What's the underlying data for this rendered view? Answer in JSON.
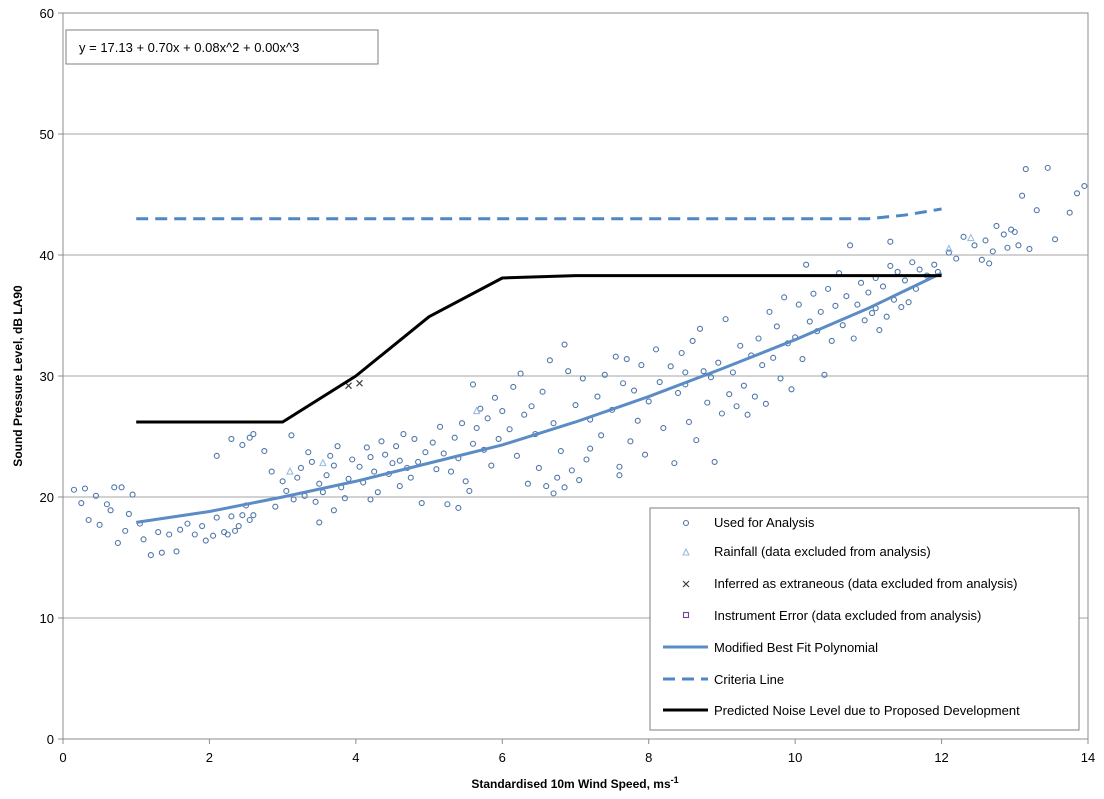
{
  "chart_data": {
    "type": "scatter",
    "equation": "y = 17.13 + 0.70x + 0.08x^2 + 0.00x^3",
    "xlabel": "Standardised 10m Wind Speed, ms",
    "xlabel_sup": "-1",
    "ylabel": "Sound Pressure Level, dB LA90",
    "xlim": [
      0,
      14
    ],
    "ylim": [
      0,
      60
    ],
    "x_ticks": [
      0,
      2,
      4,
      6,
      8,
      10,
      12,
      14
    ],
    "y_ticks": [
      0,
      10,
      20,
      30,
      40,
      50,
      60
    ],
    "grid": "horizontal",
    "legend_position": "bottom-right",
    "colors": {
      "used": "#4f76a8",
      "rainfall": "#9bbde0",
      "extraneous": "#3a3a3a",
      "instrument": "#7b3f9e",
      "fit": "#5b8cc6",
      "criteria": "#4f86c6",
      "predicted": "#000000",
      "grid": "#a6a6a6"
    },
    "legend": [
      {
        "label": "Used for Analysis",
        "marker": "circle"
      },
      {
        "label": "Rainfall (data excluded from analysis)",
        "marker": "triangle"
      },
      {
        "label": "Inferred as extraneous (data excluded from analysis)",
        "marker": "cross"
      },
      {
        "label": "Instrument Error (data excluded from analysis)",
        "marker": "square"
      },
      {
        "label": "Modified Best Fit Polynomial",
        "marker": "line"
      },
      {
        "label": "Criteria Line",
        "marker": "dashed"
      },
      {
        "label": "Predicted Noise Level due to Proposed Development",
        "marker": "thick-line"
      }
    ],
    "series": {
      "best_fit": {
        "name": "Modified Best Fit Polynomial",
        "x": [
          1,
          2,
          3,
          4,
          5,
          6,
          7,
          8,
          9,
          10,
          11,
          12
        ],
        "y": [
          17.9,
          18.8,
          20.0,
          21.3,
          22.8,
          24.3,
          26.2,
          28.3,
          30.6,
          33.0,
          35.6,
          38.5
        ]
      },
      "criteria": {
        "name": "Criteria Line",
        "x": [
          1,
          2,
          3,
          4,
          5,
          6,
          7,
          8,
          9,
          10,
          11,
          11.5,
          12
        ],
        "y": [
          43,
          43,
          43,
          43,
          43,
          43,
          43,
          43,
          43,
          43,
          43,
          43.3,
          43.8
        ]
      },
      "predicted": {
        "name": "Predicted Noise Level due to Proposed Development",
        "x": [
          1,
          2,
          3,
          4,
          5,
          6,
          7,
          8,
          9,
          10,
          11,
          12
        ],
        "y": [
          26.2,
          26.2,
          26.2,
          30.0,
          34.9,
          38.1,
          38.3,
          38.3,
          38.3,
          38.3,
          38.3,
          38.3
        ]
      },
      "extraneous": {
        "name": "Inferred as extraneous (data excluded from analysis)",
        "points": [
          [
            3.9,
            29.2
          ],
          [
            4.05,
            29.4
          ]
        ]
      },
      "rainfall": {
        "name": "Rainfall (data excluded from analysis)",
        "points": [
          [
            3.1,
            22.1
          ],
          [
            3.55,
            22.8
          ],
          [
            5.65,
            27.1
          ],
          [
            12.1,
            40.5
          ],
          [
            12.4,
            41.4
          ]
        ]
      },
      "used": {
        "name": "Used for Analysis",
        "points": [
          [
            0.15,
            20.6
          ],
          [
            0.25,
            19.5
          ],
          [
            0.35,
            18.1
          ],
          [
            0.3,
            20.7
          ],
          [
            0.45,
            20.1
          ],
          [
            0.5,
            17.7
          ],
          [
            0.6,
            19.4
          ],
          [
            0.7,
            20.8
          ],
          [
            0.8,
            20.8
          ],
          [
            0.9,
            18.6
          ],
          [
            0.95,
            20.2
          ],
          [
            0.75,
            16.2
          ],
          [
            0.85,
            17.2
          ],
          [
            0.65,
            18.9
          ],
          [
            1.05,
            17.8
          ],
          [
            1.1,
            16.5
          ],
          [
            1.2,
            15.2
          ],
          [
            1.3,
            17.1
          ],
          [
            1.35,
            15.4
          ],
          [
            1.45,
            16.9
          ],
          [
            1.55,
            15.5
          ],
          [
            1.6,
            17.3
          ],
          [
            1.7,
            17.8
          ],
          [
            1.8,
            16.9
          ],
          [
            1.9,
            17.6
          ],
          [
            1.95,
            16.4
          ],
          [
            2.05,
            16.8
          ],
          [
            2.1,
            18.3
          ],
          [
            2.2,
            17.1
          ],
          [
            2.25,
            16.9
          ],
          [
            2.3,
            18.4
          ],
          [
            2.35,
            17.2
          ],
          [
            2.4,
            17.6
          ],
          [
            2.45,
            18.5
          ],
          [
            2.5,
            19.3
          ],
          [
            2.55,
            18.1
          ],
          [
            2.6,
            18.5
          ],
          [
            2.1,
            23.4
          ],
          [
            2.3,
            24.8
          ],
          [
            2.45,
            24.3
          ],
          [
            2.55,
            24.9
          ],
          [
            2.6,
            25.2
          ],
          [
            2.75,
            23.8
          ],
          [
            2.85,
            22.1
          ],
          [
            2.9,
            19.2
          ],
          [
            3.0,
            21.3
          ],
          [
            3.05,
            20.5
          ],
          [
            3.15,
            19.8
          ],
          [
            3.2,
            21.6
          ],
          [
            3.25,
            22.4
          ],
          [
            3.3,
            20.1
          ],
          [
            3.35,
            23.7
          ],
          [
            3.4,
            22.9
          ],
          [
            3.45,
            19.6
          ],
          [
            3.5,
            21.1
          ],
          [
            3.55,
            20.4
          ],
          [
            3.6,
            21.8
          ],
          [
            3.65,
            23.4
          ],
          [
            3.7,
            22.6
          ],
          [
            3.75,
            24.2
          ],
          [
            3.8,
            20.8
          ],
          [
            3.85,
            19.9
          ],
          [
            3.9,
            21.5
          ],
          [
            3.95,
            23.1
          ],
          [
            3.12,
            25.1
          ],
          [
            3.5,
            17.9
          ],
          [
            3.7,
            18.9
          ],
          [
            4.05,
            22.5
          ],
          [
            4.1,
            21.2
          ],
          [
            4.15,
            24.1
          ],
          [
            4.2,
            23.3
          ],
          [
            4.25,
            22.1
          ],
          [
            4.3,
            20.4
          ],
          [
            4.35,
            24.6
          ],
          [
            4.4,
            23.5
          ],
          [
            4.45,
            21.9
          ],
          [
            4.5,
            22.8
          ],
          [
            4.55,
            24.2
          ],
          [
            4.6,
            23.0
          ],
          [
            4.65,
            25.2
          ],
          [
            4.7,
            22.4
          ],
          [
            4.75,
            21.6
          ],
          [
            4.8,
            24.8
          ],
          [
            4.85,
            22.9
          ],
          [
            4.9,
            19.5
          ],
          [
            4.95,
            23.7
          ],
          [
            4.2,
            19.8
          ],
          [
            4.6,
            20.9
          ],
          [
            5.05,
            24.5
          ],
          [
            5.1,
            22.3
          ],
          [
            5.15,
            25.8
          ],
          [
            5.2,
            23.6
          ],
          [
            5.25,
            19.4
          ],
          [
            5.3,
            22.1
          ],
          [
            5.35,
            24.9
          ],
          [
            5.4,
            23.2
          ],
          [
            5.45,
            26.1
          ],
          [
            5.5,
            21.3
          ],
          [
            5.55,
            20.5
          ],
          [
            5.6,
            24.4
          ],
          [
            5.65,
            25.7
          ],
          [
            5.7,
            27.3
          ],
          [
            5.75,
            23.9
          ],
          [
            5.8,
            26.5
          ],
          [
            5.85,
            22.6
          ],
          [
            5.9,
            28.2
          ],
          [
            5.95,
            24.8
          ],
          [
            5.4,
            19.1
          ],
          [
            5.6,
            29.3
          ],
          [
            6.0,
            27.1
          ],
          [
            6.1,
            25.6
          ],
          [
            6.15,
            29.1
          ],
          [
            6.2,
            23.4
          ],
          [
            6.25,
            30.2
          ],
          [
            6.3,
            26.8
          ],
          [
            6.35,
            21.1
          ],
          [
            6.4,
            27.5
          ],
          [
            6.45,
            25.2
          ],
          [
            6.5,
            22.4
          ],
          [
            6.55,
            28.7
          ],
          [
            6.6,
            20.9
          ],
          [
            6.65,
            31.3
          ],
          [
            6.7,
            26.1
          ],
          [
            6.75,
            21.6
          ],
          [
            6.8,
            23.8
          ],
          [
            6.85,
            32.6
          ],
          [
            6.9,
            30.4
          ],
          [
            6.95,
            22.2
          ],
          [
            6.7,
            20.3
          ],
          [
            6.85,
            20.8
          ],
          [
            7.0,
            27.6
          ],
          [
            7.05,
            21.4
          ],
          [
            7.1,
            29.8
          ],
          [
            7.15,
            23.1
          ],
          [
            7.2,
            26.4
          ],
          [
            7.3,
            28.3
          ],
          [
            7.35,
            25.1
          ],
          [
            7.4,
            30.1
          ],
          [
            7.5,
            27.2
          ],
          [
            7.55,
            31.6
          ],
          [
            7.6,
            22.5
          ],
          [
            7.65,
            29.4
          ],
          [
            7.7,
            31.4
          ],
          [
            7.75,
            24.6
          ],
          [
            7.8,
            28.8
          ],
          [
            7.85,
            26.3
          ],
          [
            7.9,
            30.9
          ],
          [
            7.95,
            23.5
          ],
          [
            7.2,
            24.0
          ],
          [
            7.6,
            21.8
          ],
          [
            8.0,
            27.9
          ],
          [
            8.1,
            32.2
          ],
          [
            8.15,
            29.5
          ],
          [
            8.2,
            25.7
          ],
          [
            8.3,
            30.8
          ],
          [
            8.35,
            22.8
          ],
          [
            8.4,
            28.6
          ],
          [
            8.45,
            31.9
          ],
          [
            8.5,
            29.3
          ],
          [
            8.55,
            26.2
          ],
          [
            8.6,
            32.9
          ],
          [
            8.65,
            24.7
          ],
          [
            8.7,
            33.9
          ],
          [
            8.75,
            30.4
          ],
          [
            8.8,
            27.8
          ],
          [
            8.85,
            29.9
          ],
          [
            8.9,
            22.9
          ],
          [
            8.95,
            31.1
          ],
          [
            8.5,
            30.3
          ],
          [
            9.0,
            26.9
          ],
          [
            9.05,
            34.7
          ],
          [
            9.1,
            28.5
          ],
          [
            9.15,
            30.3
          ],
          [
            9.2,
            27.5
          ],
          [
            9.25,
            32.5
          ],
          [
            9.3,
            29.2
          ],
          [
            9.35,
            26.8
          ],
          [
            9.4,
            31.7
          ],
          [
            9.45,
            28.3
          ],
          [
            9.5,
            33.1
          ],
          [
            9.55,
            30.9
          ],
          [
            9.6,
            27.7
          ],
          [
            9.65,
            35.3
          ],
          [
            9.7,
            31.5
          ],
          [
            9.75,
            34.1
          ],
          [
            9.8,
            29.8
          ],
          [
            9.85,
            36.5
          ],
          [
            9.9,
            32.7
          ],
          [
            9.95,
            28.9
          ],
          [
            10.0,
            33.2
          ],
          [
            10.05,
            35.9
          ],
          [
            10.1,
            31.4
          ],
          [
            10.15,
            39.2
          ],
          [
            10.2,
            34.5
          ],
          [
            10.25,
            36.8
          ],
          [
            10.3,
            33.7
          ],
          [
            10.35,
            35.3
          ],
          [
            10.4,
            30.1
          ],
          [
            10.45,
            37.2
          ],
          [
            10.5,
            32.9
          ],
          [
            10.55,
            35.8
          ],
          [
            10.6,
            38.5
          ],
          [
            10.65,
            34.2
          ],
          [
            10.7,
            36.6
          ],
          [
            10.75,
            40.8
          ],
          [
            10.8,
            33.1
          ],
          [
            10.85,
            35.9
          ],
          [
            10.9,
            37.7
          ],
          [
            10.95,
            34.6
          ],
          [
            11.0,
            36.9
          ],
          [
            11.05,
            35.2
          ],
          [
            11.1,
            38.1
          ],
          [
            11.15,
            33.8
          ],
          [
            11.2,
            37.4
          ],
          [
            11.25,
            34.9
          ],
          [
            11.3,
            39.1
          ],
          [
            11.35,
            36.3
          ],
          [
            11.4,
            38.6
          ],
          [
            11.45,
            35.7
          ],
          [
            11.5,
            37.9
          ],
          [
            11.55,
            36.1
          ],
          [
            11.6,
            39.4
          ],
          [
            11.65,
            37.2
          ],
          [
            11.7,
            38.8
          ],
          [
            11.8,
            38.3
          ],
          [
            11.9,
            39.2
          ],
          [
            11.95,
            38.6
          ],
          [
            11.3,
            41.1
          ],
          [
            11.1,
            35.6
          ],
          [
            12.1,
            40.2
          ],
          [
            12.2,
            39.7
          ],
          [
            12.3,
            41.5
          ],
          [
            12.45,
            40.8
          ],
          [
            12.55,
            39.6
          ],
          [
            12.6,
            41.2
          ],
          [
            12.7,
            40.3
          ],
          [
            12.75,
            42.4
          ],
          [
            12.85,
            41.7
          ],
          [
            12.9,
            40.6
          ],
          [
            12.95,
            42.1
          ],
          [
            13.05,
            40.8
          ],
          [
            13.1,
            44.9
          ],
          [
            13.15,
            47.1
          ],
          [
            13.2,
            40.5
          ],
          [
            13.3,
            43.7
          ],
          [
            13.45,
            47.2
          ],
          [
            13.55,
            41.3
          ],
          [
            13.75,
            43.5
          ],
          [
            13.85,
            45.1
          ],
          [
            13.95,
            45.7
          ],
          [
            12.65,
            39.3
          ],
          [
            13.0,
            41.9
          ]
        ]
      }
    }
  }
}
